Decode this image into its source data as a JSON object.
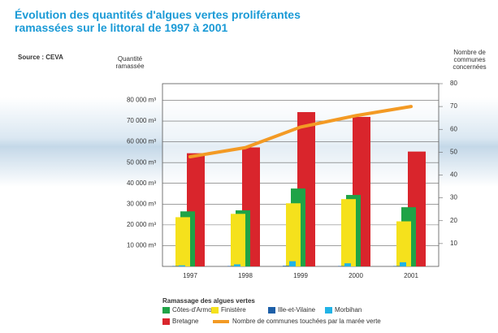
{
  "chart_data": {
    "type": "bar",
    "title": "Évolution des quantités d'algues vertes proliférantes ramassées sur le littoral de 1997 à 2001",
    "source": "Source : CEVA",
    "y_label": "Quantité ramassée",
    "y2_label": "Nombre de communes concernées",
    "legend_title": "Ramassage des algues vertes",
    "categories": [
      "1997",
      "1998",
      "1999",
      "2000",
      "2001"
    ],
    "series": [
      {
        "name": "Bretagne",
        "color": "#d9252c",
        "values": [
          54500,
          57300,
          74300,
          72000,
          55300
        ]
      },
      {
        "name": "Côtes-d'Armor",
        "color": "#1fa347",
        "values": [
          26500,
          27000,
          37500,
          34400,
          28500
        ]
      },
      {
        "name": "Finistère",
        "color": "#f5e11c",
        "values": [
          23700,
          25300,
          30400,
          32400,
          21700
        ]
      },
      {
        "name": "Ille-et-Vilaine",
        "color": "#1d5fa8",
        "values": [
          200,
          200,
          300,
          200,
          200
        ]
      },
      {
        "name": "Morbihan",
        "color": "#21b3e6",
        "values": [
          500,
          1000,
          2500,
          1500,
          2000
        ]
      },
      {
        "name": "Nombre de communes touchées par la marée verte",
        "color": "#f39a24",
        "type": "line",
        "axis": "y2",
        "values": [
          48,
          52,
          61,
          66,
          70
        ]
      }
    ],
    "ylim": [
      0,
      88000
    ],
    "yticks": [
      {
        "value": 10000,
        "label": "10 000 m³"
      },
      {
        "value": 20000,
        "label": "20 000 m³"
      },
      {
        "value": 30000,
        "label": "30 000 m³"
      },
      {
        "value": 40000,
        "label": "40 000 m³"
      },
      {
        "value": 50000,
        "label": "50 000 m³"
      },
      {
        "value": 60000,
        "label": "60 000 m³"
      },
      {
        "value": 70000,
        "label": "70 000 m³"
      },
      {
        "value": 80000,
        "label": "80 000 m³"
      }
    ],
    "y2lim": [
      0,
      80
    ],
    "y2ticks": [
      10,
      20,
      30,
      40,
      50,
      60,
      70,
      80
    ],
    "grid": true
  }
}
